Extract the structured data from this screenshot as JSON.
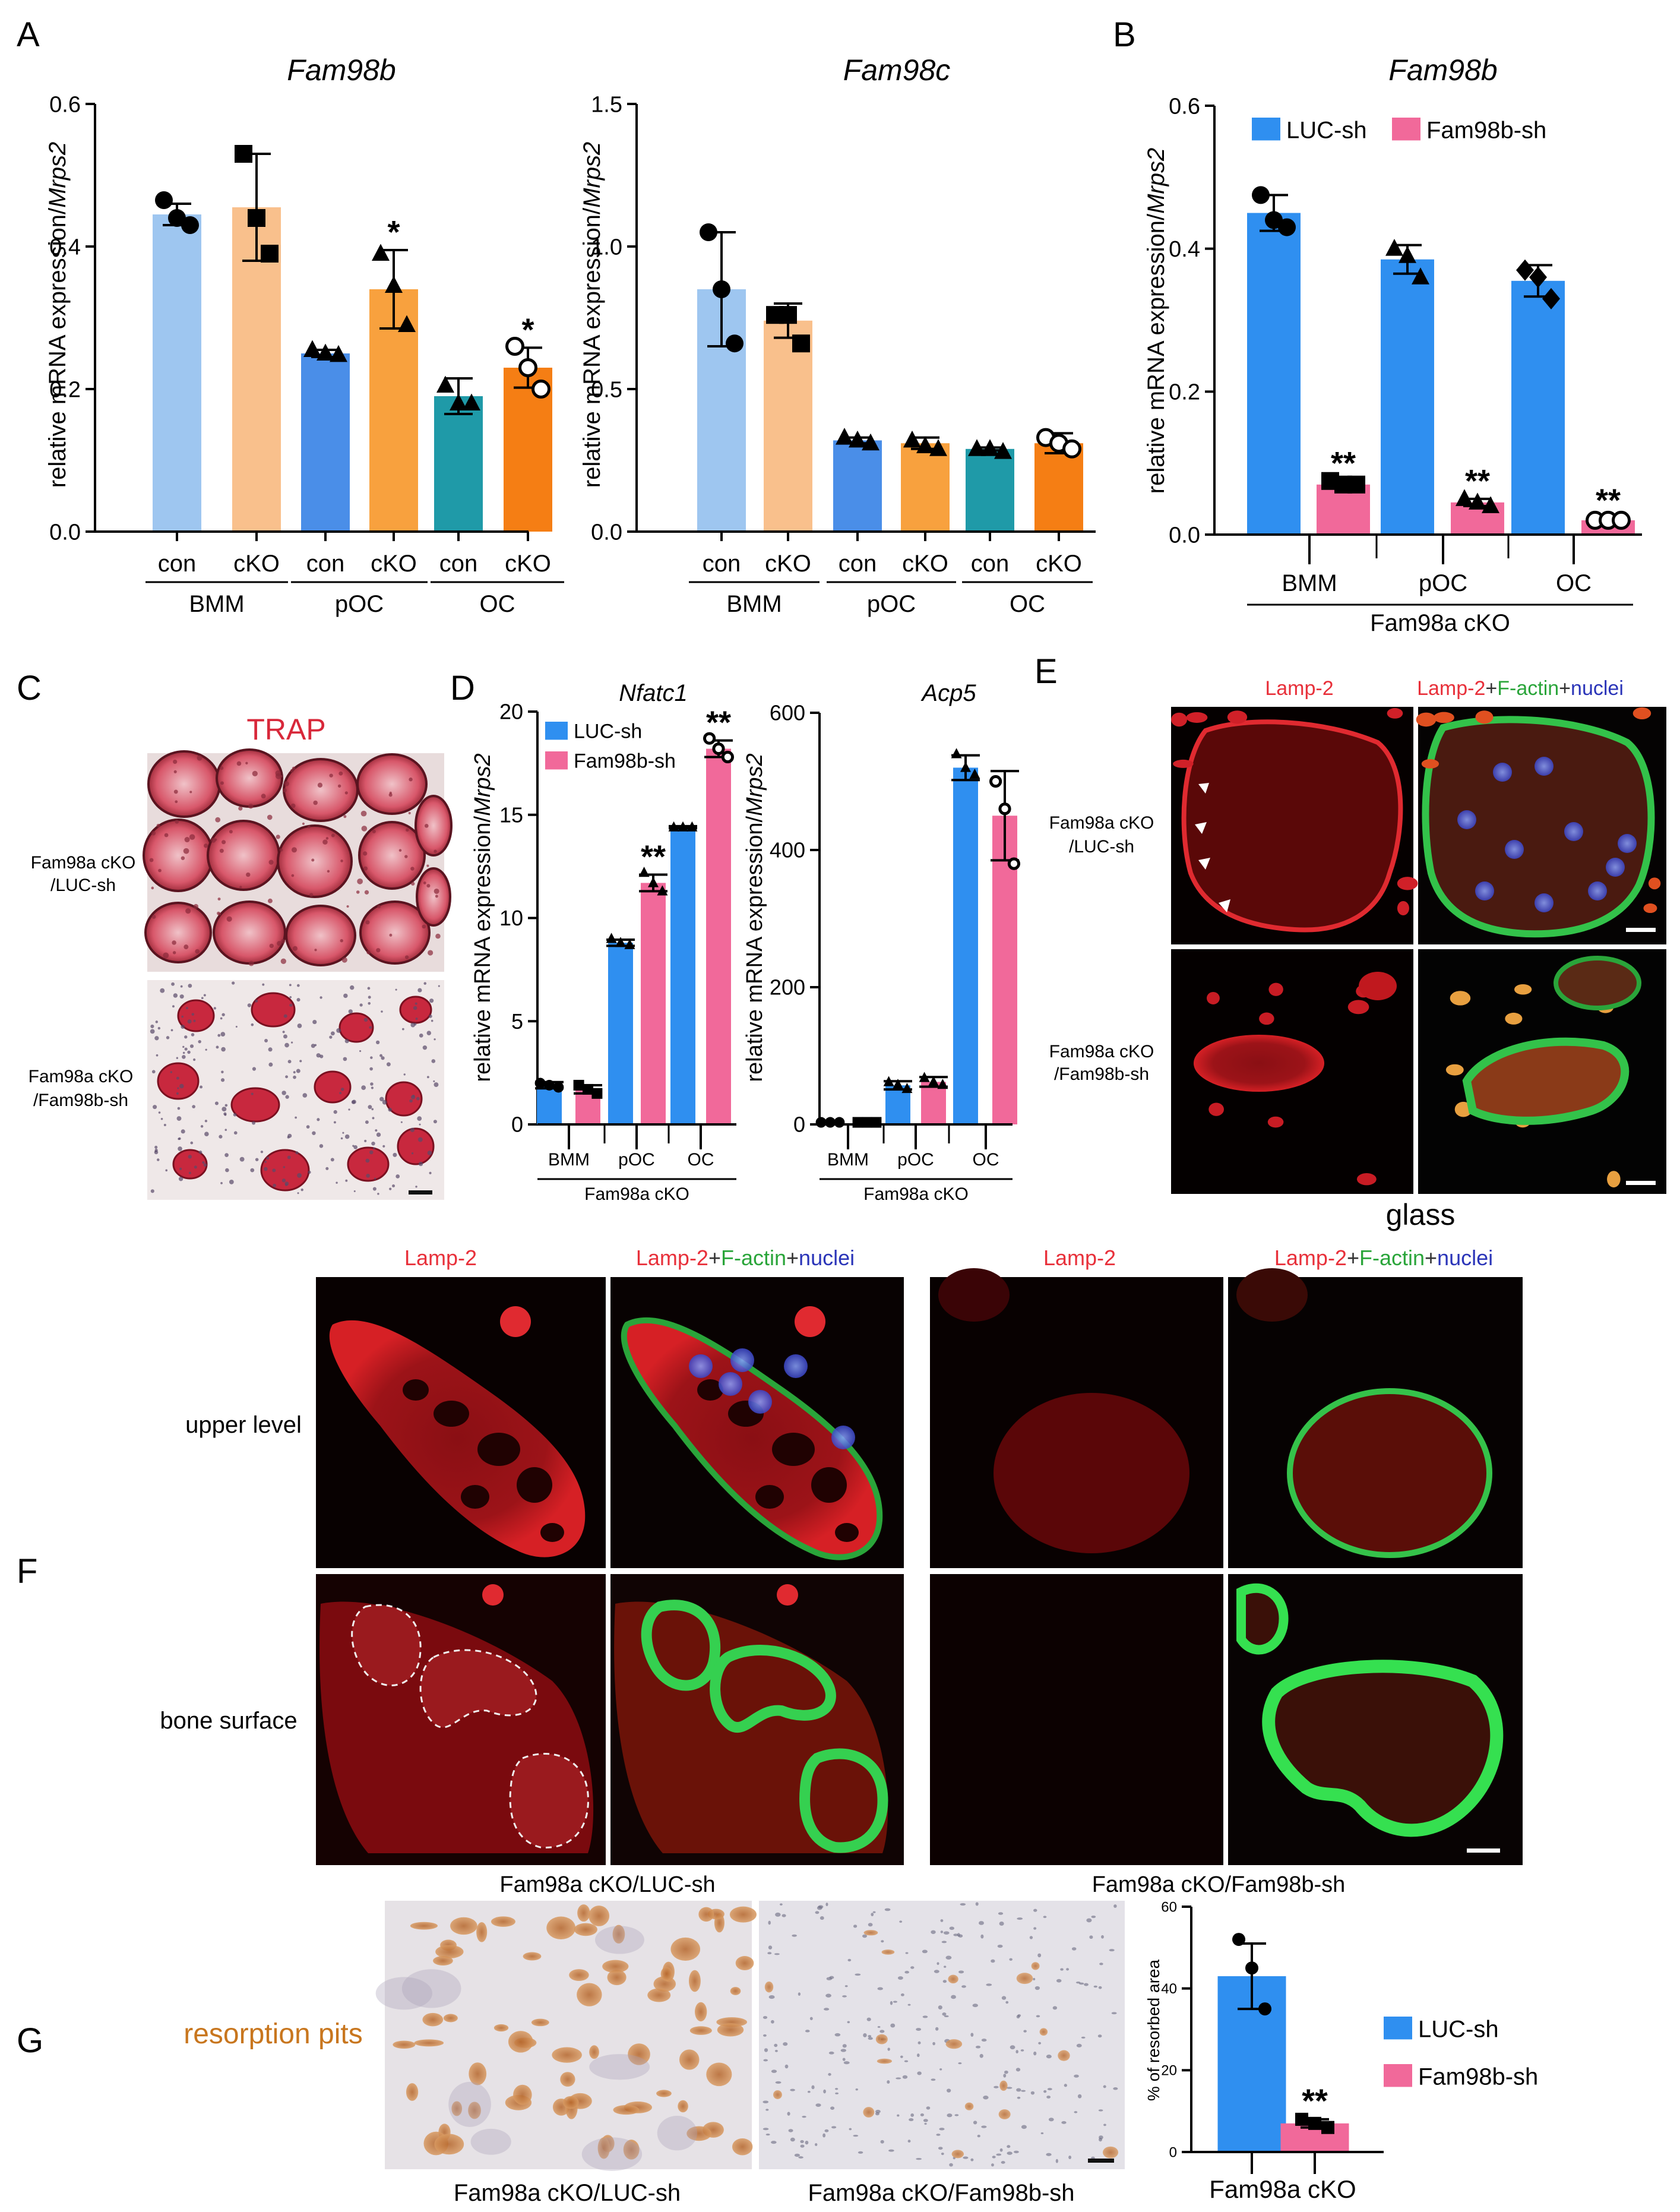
{
  "panel_letters": [
    "A",
    "B",
    "C",
    "D",
    "E",
    "F",
    "G"
  ],
  "colors": {
    "con_bmm": "#9ec6f0",
    "cko_bmm": "#f9c08c",
    "con_poc": "#4a8ee8",
    "cko_poc": "#f8a13e",
    "con_oc": "#1f9aa8",
    "cko_oc": "#f57e14",
    "luc": "#2f8ff0",
    "fam98b": "#f1699a",
    "lamp_red": "#e8303a",
    "factin_green": "#2aa53a",
    "nuclei_blue": "#2a34b8",
    "resorption_label": "#c8761e",
    "trap_label": "#d8283a"
  },
  "chart_data": [
    {
      "id": "A1",
      "type": "bar",
      "title": "Fam98b",
      "ylabel_pre": "relative mRNA expression/",
      "ylabel_it": "Mrps2",
      "ylim": [
        0,
        0.6
      ],
      "yticks": [
        "0.0",
        "0.2",
        "0.4",
        "0.6"
      ],
      "categories": [
        "con",
        "cKO",
        "con",
        "cKO",
        "con",
        "cKO"
      ],
      "groups": [
        "BMM",
        "pOC",
        "OC"
      ],
      "values": [
        0.445,
        0.455,
        0.25,
        0.34,
        0.19,
        0.23
      ],
      "errors": [
        0.015,
        0.075,
        0.005,
        0.055,
        0.025,
        0.028
      ],
      "annotations": [
        "",
        "",
        "",
        "*",
        "",
        "*"
      ],
      "points": [
        [
          0.465,
          0.44,
          0.43
        ],
        [
          0.53,
          0.44,
          0.39
        ],
        [
          0.255,
          0.25,
          0.248
        ],
        [
          0.39,
          0.345,
          0.29
        ],
        [
          0.205,
          0.18,
          0.18
        ],
        [
          0.26,
          0.23,
          0.2
        ]
      ]
    },
    {
      "id": "A2",
      "type": "bar",
      "title": "Fam98c",
      "ylabel_pre": "relative mRNA expression/",
      "ylabel_it": "Mrps2",
      "ylim": [
        0,
        1.5
      ],
      "yticks": [
        "0.0",
        "0.5",
        "1.0",
        "1.5"
      ],
      "categories": [
        "con",
        "cKO",
        "con",
        "cKO",
        "con",
        "cKO"
      ],
      "groups": [
        "BMM",
        "pOC",
        "OC"
      ],
      "values": [
        0.85,
        0.74,
        0.32,
        0.31,
        0.29,
        0.31
      ],
      "errors": [
        0.2,
        0.06,
        0.01,
        0.02,
        0.005,
        0.035
      ],
      "annotations": [
        "",
        "",
        "",
        "",
        "",
        ""
      ],
      "points": [
        [
          1.05,
          0.85,
          0.66
        ],
        [
          0.76,
          0.76,
          0.66
        ],
        [
          0.33,
          0.32,
          0.31
        ],
        [
          0.32,
          0.3,
          0.29
        ],
        [
          0.29,
          0.29,
          0.28
        ],
        [
          0.33,
          0.31,
          0.29
        ]
      ]
    },
    {
      "id": "B",
      "type": "bar",
      "title": "Fam98b",
      "ylabel_pre": "relative mRNA expression/",
      "ylabel_it": "Mrps2",
      "ylim": [
        0,
        0.6
      ],
      "yticks": [
        "0.0",
        "0.2",
        "0.4",
        "0.6"
      ],
      "legend": [
        "LUC-sh",
        "Fam98b-sh"
      ],
      "groups": [
        "BMM",
        "pOC",
        "OC"
      ],
      "xgroup_label": "Fam98a cKO",
      "values": [
        0.45,
        0.07,
        0.385,
        0.045,
        0.355,
        0.02
      ],
      "errors": [
        0.025,
        0.005,
        0.02,
        0.005,
        0.022,
        0.003
      ],
      "annotations": [
        "",
        "**",
        "",
        "**",
        "",
        "**"
      ],
      "points": [
        [
          0.475,
          0.44,
          0.43
        ],
        [
          0.075,
          0.07,
          0.07
        ],
        [
          0.4,
          0.39,
          0.36
        ],
        [
          0.05,
          0.045,
          0.04
        ],
        [
          0.37,
          0.36,
          0.33
        ],
        [
          0.02,
          0.02,
          0.02
        ]
      ]
    },
    {
      "id": "D1",
      "type": "bar",
      "title": "Nfatc1",
      "ylabel_pre": "relative mRNA expression/",
      "ylabel_it": "Mrps2",
      "ylim": [
        0,
        20
      ],
      "yticks": [
        "0",
        "5",
        "10",
        "15",
        "20"
      ],
      "legend": [
        "LUC-sh",
        "Fam98b-sh"
      ],
      "groups": [
        "BMM",
        "pOC",
        "OC"
      ],
      "xgroup_label": "Fam98a cKO",
      "values": [
        1.9,
        1.7,
        8.8,
        11.7,
        14.4,
        18.2
      ],
      "errors": [
        0.15,
        0.2,
        0.15,
        0.4,
        0.05,
        0.4
      ],
      "annotations": [
        "",
        "",
        "",
        "**",
        "",
        "**"
      ],
      "points": [
        [
          2.0,
          1.9,
          1.8
        ],
        [
          1.9,
          1.7,
          1.5
        ],
        [
          9.0,
          8.8,
          8.7
        ],
        [
          12.2,
          11.7,
          11.3
        ],
        [
          14.4,
          14.4,
          14.4
        ],
        [
          18.7,
          18.2,
          17.8
        ]
      ]
    },
    {
      "id": "D2",
      "type": "bar",
      "title": "Acp5",
      "ylabel_pre": "relative mRNA expression/",
      "ylabel_it": "Mrps2",
      "ylim": [
        0,
        600
      ],
      "yticks": [
        "0",
        "200",
        "400",
        "600"
      ],
      "groups": [
        "BMM",
        "pOC",
        "OC"
      ],
      "xgroup_label": "Fam98a cKO",
      "values": [
        3,
        3,
        57,
        62,
        520,
        450
      ],
      "errors": [
        1,
        1,
        6,
        7,
        18,
        65
      ],
      "annotations": [
        "",
        "",
        "",
        "",
        "",
        ""
      ],
      "points": [
        [
          3,
          3,
          3
        ],
        [
          3,
          3,
          3
        ],
        [
          62,
          58,
          52
        ],
        [
          68,
          62,
          58
        ],
        [
          540,
          520,
          510
        ],
        [
          500,
          460,
          380
        ]
      ]
    },
    {
      "id": "G",
      "type": "bar",
      "ylabel": "% of resorbed area",
      "ylim": [
        0,
        60
      ],
      "yticks": [
        "0",
        "20",
        "40",
        "60"
      ],
      "legend": [
        "LUC-sh",
        "Fam98b-sh"
      ],
      "xgroup_label": "Fam98a cKO",
      "values": [
        43,
        7
      ],
      "errors": [
        8,
        1
      ],
      "annotations": [
        "",
        "**"
      ],
      "points": [
        [
          52,
          45,
          35
        ],
        [
          8,
          7,
          6
        ]
      ]
    }
  ],
  "panel_c": {
    "title": "TRAP",
    "row1_label": [
      "Fam98a cKO",
      "/LUC-sh"
    ],
    "row2_label": [
      "Fam98a cKO",
      "/Fam98b-sh"
    ]
  },
  "panel_e": {
    "col1": "Lamp-2",
    "col2_parts": [
      "Lamp-2",
      "+",
      "F-actin",
      "+",
      "nuclei"
    ],
    "row1_label": [
      "Fam98a cKO",
      "/LUC-sh"
    ],
    "row2_label": [
      "Fam98a cKO",
      "/Fam98b-sh"
    ],
    "footer": "glass"
  },
  "panel_f": {
    "col1": "Lamp-2",
    "col2_parts": [
      "Lamp-2",
      "+",
      "F-actin",
      "+",
      "nuclei"
    ],
    "row1_label": "upper level",
    "row2_label": "bone surface",
    "group1": "Fam98a cKO/LUC-sh",
    "group2": "Fam98a cKO/Fam98b-sh"
  },
  "panel_g": {
    "label": "resorption pits",
    "caption1": "Fam98a cKO/LUC-sh",
    "caption2": "Fam98a cKO/Fam98b-sh"
  }
}
